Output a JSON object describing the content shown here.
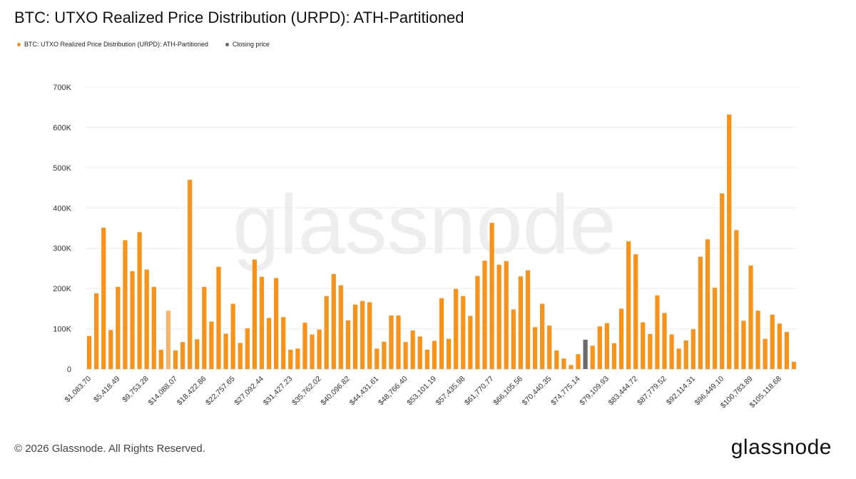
{
  "title": "BTC: UTXO Realized Price Distribution (URPD): ATH-Partitioned",
  "legend": [
    {
      "label": "BTC: UTXO Realized Price Distribution (URPD): ATH-Partitioned",
      "color": "#f7931a"
    },
    {
      "label": "Closing price",
      "color": "#666666"
    }
  ],
  "watermark": "glassnode",
  "footer": {
    "copyright": "© 2026 Glassnode. All Rights Reserved.",
    "logo": "glassnode"
  },
  "chart_data": {
    "type": "bar",
    "title": "BTC: UTXO Realized Price Distribution (URPD): ATH-Partitioned",
    "ylim": [
      0,
      700000
    ],
    "y_ticks": [
      {
        "value": 0,
        "label": "0"
      },
      {
        "value": 100000,
        "label": "100K"
      },
      {
        "value": 200000,
        "label": "200K"
      },
      {
        "value": 300000,
        "label": "300K"
      },
      {
        "value": 400000,
        "label": "400K"
      },
      {
        "value": 500000,
        "label": "500K"
      },
      {
        "value": 600000,
        "label": "600K"
      },
      {
        "value": 700000,
        "label": "700K"
      }
    ],
    "grid": true,
    "legend_position": "top-left",
    "x_tick_labels": [
      {
        "index": 0,
        "label": "$1,083.70"
      },
      {
        "index": 4,
        "label": "$5,418.49"
      },
      {
        "index": 8,
        "label": "$9,753.28"
      },
      {
        "index": 12,
        "label": "$14,088.07"
      },
      {
        "index": 16,
        "label": "$18,422.86"
      },
      {
        "index": 20,
        "label": "$22,757.65"
      },
      {
        "index": 24,
        "label": "$27,092.44"
      },
      {
        "index": 28,
        "label": "$31,427.23"
      },
      {
        "index": 32,
        "label": "$35,762.02"
      },
      {
        "index": 36,
        "label": "$40,096.82"
      },
      {
        "index": 40,
        "label": "$44,431.61"
      },
      {
        "index": 44,
        "label": "$48,766.40"
      },
      {
        "index": 48,
        "label": "$53,101.19"
      },
      {
        "index": 52,
        "label": "$57,435.98"
      },
      {
        "index": 56,
        "label": "$61,770.77"
      },
      {
        "index": 60,
        "label": "$66,105.56"
      },
      {
        "index": 64,
        "label": "$70,440.35"
      },
      {
        "index": 68,
        "label": "$74,775.14"
      },
      {
        "index": 72,
        "label": "$79,109.93"
      },
      {
        "index": 76,
        "label": "$83,444.72"
      },
      {
        "index": 80,
        "label": "$87,779.52"
      },
      {
        "index": 84,
        "label": "$92,114.31"
      },
      {
        "index": 88,
        "label": "$96,449.10"
      },
      {
        "index": 92,
        "label": "$100,783.89"
      },
      {
        "index": 96,
        "label": "$105,118.68"
      }
    ],
    "series": [
      {
        "name": "BTC: UTXO Realized Price Distribution (URPD): ATH-Partitioned",
        "color": "#f7931a",
        "values": [
          82000,
          188000,
          351000,
          97000,
          204000,
          320000,
          243000,
          340000,
          247000,
          204000,
          48000,
          145000,
          46000,
          67000,
          470000,
          74000,
          204000,
          118000,
          254000,
          88000,
          162000,
          65000,
          101000,
          272000,
          229000,
          127000,
          226000,
          129000,
          48000,
          51000,
          115000,
          86000,
          98000,
          181000,
          236000,
          208000,
          121000,
          160000,
          169000,
          166000,
          51000,
          68000,
          133000,
          133000,
          67000,
          96000,
          81000,
          48000,
          70000,
          176000,
          75000,
          199000,
          181000,
          132000,
          231000,
          269000,
          363000,
          259000,
          268000,
          148000,
          230000,
          245000,
          104000,
          162000,
          108000,
          46000,
          26000,
          10000,
          37000,
          73000,
          58000,
          106000,
          114000,
          64000,
          150000,
          317000,
          285000,
          116000,
          87000,
          183000,
          139000,
          86000,
          51000,
          71000,
          99000,
          279000,
          322000,
          202000,
          436000,
          632000,
          345000,
          120000,
          257000,
          145000,
          75000,
          135000,
          113000,
          92000,
          18000
        ]
      }
    ],
    "highlights": [
      {
        "index": 11,
        "color": "#f8b56e",
        "note": "lighter bar"
      },
      {
        "index": 69,
        "color": "#6b6b6b",
        "series": "Closing price"
      }
    ]
  }
}
